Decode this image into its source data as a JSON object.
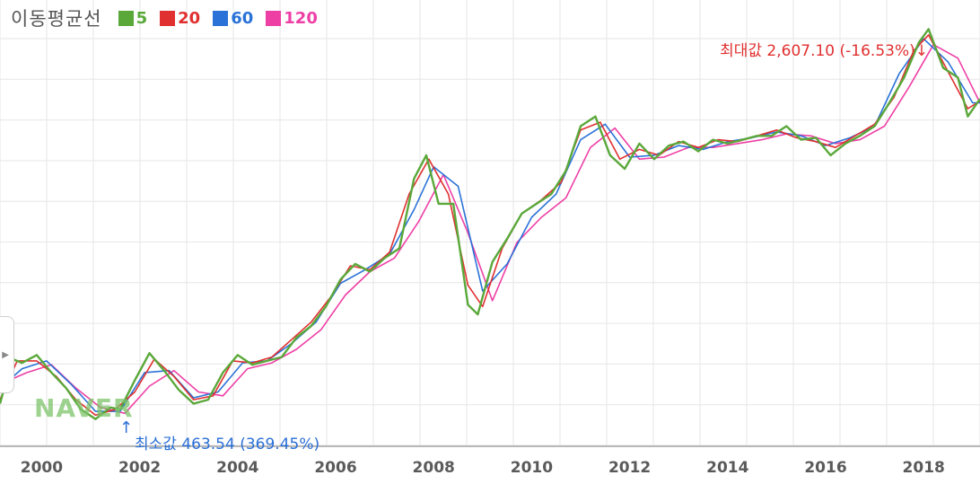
{
  "legend": {
    "title": "이동평균선",
    "items": [
      {
        "label": "5",
        "color": "#5aa83a"
      },
      {
        "label": "20",
        "color": "#e03030"
      },
      {
        "label": "60",
        "color": "#2a72d8"
      },
      {
        "label": "120",
        "color": "#ee3fa5"
      }
    ]
  },
  "watermark": "NAVER",
  "annotations": {
    "max": {
      "label": "최대값 2,607.10 (-16.53%)",
      "arrow": "↓",
      "x": 2018.0,
      "y": 2607.1
    },
    "min": {
      "label": "최소값 463.54 (369.45%)",
      "arrow": "↑",
      "x": 2001.6,
      "y": 463.54
    }
  },
  "chart_data": {
    "type": "line",
    "title": "",
    "xlabel": "",
    "ylabel": "",
    "x_ticks": [
      "2000",
      "2002",
      "2004",
      "2006",
      "2008",
      "2010",
      "2012",
      "2014",
      "2016",
      "2018"
    ],
    "xlim": [
      1999.15,
      2019.15
    ],
    "ylim": [
      400,
      2700
    ],
    "grid": true,
    "series": [
      {
        "name": "5",
        "color": "#5aa83a",
        "x": [
          1999.15,
          1999.4,
          1999.6,
          1999.9,
          2000.2,
          2000.5,
          2000.8,
          2001.1,
          2001.4,
          2001.6,
          2001.9,
          2002.2,
          2002.5,
          2002.8,
          2003.1,
          2003.4,
          2003.7,
          2004.0,
          2004.3,
          2004.6,
          2004.9,
          2005.2,
          2005.5,
          2005.8,
          2006.1,
          2006.4,
          2006.7,
          2007.0,
          2007.3,
          2007.6,
          2007.85,
          2008.1,
          2008.4,
          2008.7,
          2008.9,
          2009.2,
          2009.5,
          2009.8,
          2010.1,
          2010.4,
          2010.7,
          2011.0,
          2011.3,
          2011.6,
          2011.9,
          2012.2,
          2012.5,
          2012.8,
          2013.1,
          2013.4,
          2013.7,
          2014.0,
          2014.3,
          2014.6,
          2014.9,
          2015.2,
          2015.5,
          2015.8,
          2016.1,
          2016.4,
          2016.7,
          2017.0,
          2017.3,
          2017.6,
          2017.9,
          2018.1,
          2018.4,
          2018.7,
          2018.9,
          2019.15
        ],
        "values": [
          620,
          850,
          830,
          870,
          780,
          700,
          590,
          540,
          600,
          590,
          740,
          880,
          790,
          690,
          620,
          640,
          780,
          870,
          820,
          840,
          860,
          960,
          1020,
          1120,
          1260,
          1340,
          1300,
          1370,
          1420,
          1780,
          1900,
          1650,
          1650,
          1130,
          1080,
          1350,
          1470,
          1600,
          1650,
          1700,
          1820,
          2050,
          2100,
          1900,
          1830,
          1960,
          1880,
          1950,
          1970,
          1920,
          1980,
          1960,
          1980,
          2000,
          2000,
          2050,
          1980,
          1990,
          1900,
          1960,
          2000,
          2050,
          2170,
          2300,
          2480,
          2550,
          2350,
          2300,
          2100,
          2190
        ]
      },
      {
        "name": "20",
        "color": "#e03030",
        "x": [
          1999.15,
          1999.5,
          1999.9,
          2000.3,
          2000.7,
          2001.1,
          2001.5,
          2001.9,
          2002.3,
          2002.7,
          2003.1,
          2003.5,
          2003.9,
          2004.3,
          2004.7,
          2005.1,
          2005.5,
          2005.9,
          2006.3,
          2006.7,
          2007.1,
          2007.5,
          2007.9,
          2008.3,
          2008.7,
          2009.0,
          2009.4,
          2009.8,
          2010.2,
          2010.6,
          2011.0,
          2011.4,
          2011.8,
          2012.2,
          2012.6,
          2013.0,
          2013.4,
          2013.8,
          2014.2,
          2014.6,
          2015.0,
          2015.4,
          2015.8,
          2016.2,
          2016.6,
          2017.0,
          2017.4,
          2017.8,
          2018.1,
          2018.5,
          2018.9,
          2019.15
        ],
        "values": [
          640,
          840,
          840,
          760,
          640,
          560,
          590,
          680,
          850,
          760,
          640,
          660,
          840,
          830,
          860,
          950,
          1040,
          1170,
          1330,
          1310,
          1400,
          1700,
          1880,
          1700,
          1230,
          1120,
          1420,
          1600,
          1670,
          1760,
          2030,
          2070,
          1880,
          1930,
          1900,
          1970,
          1940,
          1980,
          1970,
          2000,
          2030,
          1990,
          1970,
          1940,
          2000,
          2060,
          2200,
          2440,
          2520,
          2330,
          2140,
          2180
        ]
      },
      {
        "name": "60",
        "color": "#2a72d8",
        "x": [
          1999.15,
          1999.6,
          2000.1,
          2000.6,
          2001.1,
          2001.6,
          2002.1,
          2002.6,
          2003.1,
          2003.6,
          2004.1,
          2004.6,
          2005.1,
          2005.6,
          2006.1,
          2006.6,
          2007.1,
          2007.6,
          2008.0,
          2008.5,
          2009.0,
          2009.5,
          2010.0,
          2010.5,
          2011.0,
          2011.5,
          2012.0,
          2012.5,
          2013.0,
          2013.5,
          2014.0,
          2014.5,
          2015.0,
          2015.5,
          2016.0,
          2016.5,
          2017.0,
          2017.5,
          2018.0,
          2018.5,
          2019.0,
          2019.15
        ],
        "values": [
          700,
          800,
          840,
          720,
          580,
          580,
          780,
          790,
          650,
          680,
          830,
          840,
          930,
          1040,
          1240,
          1310,
          1390,
          1620,
          1840,
          1740,
          1200,
          1340,
          1580,
          1700,
          1980,
          2060,
          1890,
          1900,
          1950,
          1930,
          1970,
          1990,
          2020,
          2000,
          1950,
          1990,
          2050,
          2320,
          2500,
          2380,
          2170,
          2170
        ]
      },
      {
        "name": "120",
        "color": "#ee3fa5",
        "x": [
          1999.15,
          1999.7,
          2000.2,
          2000.7,
          2001.2,
          2001.7,
          2002.2,
          2002.7,
          2003.2,
          2003.7,
          2004.2,
          2004.7,
          2005.2,
          2005.7,
          2006.2,
          2006.7,
          2007.2,
          2007.7,
          2008.2,
          2008.7,
          2009.2,
          2009.7,
          2010.2,
          2010.7,
          2011.2,
          2011.7,
          2012.2,
          2012.7,
          2013.2,
          2013.7,
          2014.2,
          2014.7,
          2015.2,
          2015.7,
          2016.2,
          2016.7,
          2017.2,
          2017.7,
          2018.2,
          2018.7,
          2019.15
        ],
        "values": [
          720,
          780,
          820,
          700,
          600,
          570,
          710,
          790,
          680,
          660,
          800,
          830,
          900,
          1000,
          1180,
          1300,
          1370,
          1560,
          1800,
          1500,
          1150,
          1450,
          1580,
          1680,
          1940,
          2040,
          1880,
          1890,
          1940,
          1940,
          1960,
          1980,
          2010,
          2000,
          1960,
          1980,
          2050,
          2250,
          2470,
          2400,
          2170
        ]
      }
    ]
  }
}
